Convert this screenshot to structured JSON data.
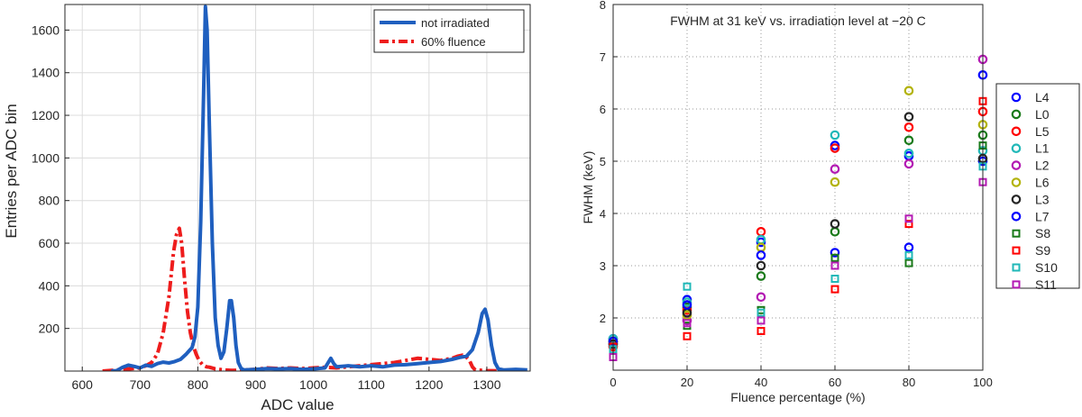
{
  "chart_data": [
    {
      "type": "line",
      "title": "",
      "xlabel": "ADC value",
      "ylabel": "Entries per ADC bin",
      "xlim": [
        570,
        1375
      ],
      "ylim": [
        0,
        1720
      ],
      "grid": true,
      "legend_position": "top-right",
      "xticks": [
        600,
        700,
        800,
        900,
        1000,
        1100,
        1200,
        1300
      ],
      "yticks": [
        200,
        400,
        600,
        800,
        1000,
        1200,
        1400,
        1600
      ],
      "series": [
        {
          "name": "not irradiated",
          "color": "#1f5fbf",
          "style": "solid",
          "points": [
            [
              650,
              0
            ],
            [
              660,
              2
            ],
            [
              670,
              18
            ],
            [
              680,
              28
            ],
            [
              690,
              22
            ],
            [
              700,
              15
            ],
            [
              710,
              28
            ],
            [
              720,
              22
            ],
            [
              730,
              35
            ],
            [
              740,
              42
            ],
            [
              750,
              38
            ],
            [
              760,
              45
            ],
            [
              770,
              55
            ],
            [
              780,
              80
            ],
            [
              785,
              95
            ],
            [
              790,
              110
            ],
            [
              795,
              160
            ],
            [
              800,
              300
            ],
            [
              805,
              700
            ],
            [
              810,
              1300
            ],
            [
              813,
              1710
            ],
            [
              816,
              1600
            ],
            [
              820,
              1150
            ],
            [
              825,
              600
            ],
            [
              830,
              250
            ],
            [
              835,
              120
            ],
            [
              840,
              60
            ],
            [
              845,
              90
            ],
            [
              850,
              200
            ],
            [
              855,
              330
            ],
            [
              858,
              330
            ],
            [
              862,
              250
            ],
            [
              866,
              120
            ],
            [
              870,
              40
            ],
            [
              875,
              12
            ],
            [
              880,
              5
            ],
            [
              900,
              8
            ],
            [
              920,
              12
            ],
            [
              940,
              10
            ],
            [
              960,
              12
            ],
            [
              980,
              8
            ],
            [
              1000,
              10
            ],
            [
              1020,
              15
            ],
            [
              1030,
              60
            ],
            [
              1035,
              35
            ],
            [
              1040,
              20
            ],
            [
              1060,
              25
            ],
            [
              1080,
              20
            ],
            [
              1100,
              25
            ],
            [
              1120,
              20
            ],
            [
              1140,
              28
            ],
            [
              1160,
              30
            ],
            [
              1180,
              35
            ],
            [
              1200,
              40
            ],
            [
              1220,
              45
            ],
            [
              1240,
              55
            ],
            [
              1255,
              65
            ],
            [
              1265,
              70
            ],
            [
              1275,
              100
            ],
            [
              1285,
              180
            ],
            [
              1292,
              270
            ],
            [
              1297,
              290
            ],
            [
              1302,
              240
            ],
            [
              1308,
              120
            ],
            [
              1314,
              40
            ],
            [
              1320,
              10
            ],
            [
              1330,
              5
            ],
            [
              1350,
              8
            ],
            [
              1370,
              5
            ]
          ]
        },
        {
          "name": "60% fluence",
          "color": "#ee1c1c",
          "style": "dashdot",
          "points": [
            [
              635,
              0
            ],
            [
              660,
              5
            ],
            [
              680,
              10
            ],
            [
              700,
              15
            ],
            [
              710,
              25
            ],
            [
              720,
              40
            ],
            [
              730,
              80
            ],
            [
              740,
              180
            ],
            [
              750,
              350
            ],
            [
              758,
              560
            ],
            [
              763,
              640
            ],
            [
              768,
              670
            ],
            [
              772,
              600
            ],
            [
              777,
              430
            ],
            [
              782,
              280
            ],
            [
              787,
              180
            ],
            [
              792,
              120
            ],
            [
              797,
              80
            ],
            [
              802,
              50
            ],
            [
              808,
              30
            ],
            [
              815,
              20
            ],
            [
              820,
              18
            ],
            [
              830,
              10
            ],
            [
              845,
              5
            ],
            [
              860,
              3
            ],
            [
              880,
              5
            ],
            [
              900,
              8
            ],
            [
              920,
              15
            ],
            [
              940,
              12
            ],
            [
              960,
              15
            ],
            [
              980,
              12
            ],
            [
              1000,
              15
            ],
            [
              1020,
              18
            ],
            [
              1040,
              15
            ],
            [
              1060,
              20
            ],
            [
              1080,
              25
            ],
            [
              1100,
              30
            ],
            [
              1120,
              35
            ],
            [
              1140,
              40
            ],
            [
              1160,
              50
            ],
            [
              1180,
              60
            ],
            [
              1200,
              55
            ],
            [
              1220,
              50
            ],
            [
              1240,
              60
            ],
            [
              1250,
              70
            ],
            [
              1258,
              75
            ],
            [
              1263,
              70
            ],
            [
              1270,
              50
            ],
            [
              1275,
              20
            ],
            [
              1280,
              5
            ],
            [
              1300,
              2
            ],
            [
              1330,
              0
            ]
          ]
        }
      ]
    },
    {
      "type": "scatter",
      "title": "FWHM at 31 keV vs. irradiation level at −20 C",
      "xlabel": "Fluence percentage (%)",
      "ylabel": "FWHM (keV)",
      "xlim": [
        0,
        100
      ],
      "ylim": [
        1,
        8
      ],
      "grid": true,
      "legend_position": "right-outside",
      "xticks": [
        0,
        20,
        40,
        60,
        80,
        100
      ],
      "yticks": [
        2,
        3,
        4,
        5,
        6,
        7,
        8
      ],
      "series": [
        {
          "name": "L4",
          "marker": "circle",
          "color": "#0000ff",
          "x": [
            0,
            20,
            40,
            60,
            80,
            100
          ],
          "y": [
            1.6,
            2.35,
            3.45,
            5.3,
            5.1,
            5.0
          ]
        },
        {
          "name": "L0",
          "marker": "circle",
          "color": "#1a7a1a",
          "x": [
            0,
            20,
            40,
            60,
            80,
            100
          ],
          "y": [
            1.55,
            2.2,
            2.8,
            3.65,
            5.4,
            5.5
          ]
        },
        {
          "name": "L5",
          "marker": "circle",
          "color": "#ff0000",
          "x": [
            0,
            20,
            40,
            60,
            80,
            100
          ],
          "y": [
            1.45,
            2.15,
            3.65,
            5.25,
            5.65,
            5.95
          ]
        },
        {
          "name": "L1",
          "marker": "circle",
          "color": "#21b8b8",
          "x": [
            0,
            20,
            40,
            60,
            80,
            100
          ],
          "y": [
            1.6,
            2.3,
            3.5,
            5.5,
            5.15,
            5.2
          ]
        },
        {
          "name": "L2",
          "marker": "circle",
          "color": "#b31ab3",
          "x": [
            0,
            20,
            40,
            60,
            80,
            100
          ],
          "y": [
            1.5,
            1.95,
            2.4,
            4.85,
            4.95,
            6.95
          ]
        },
        {
          "name": "L6",
          "marker": "circle",
          "color": "#b3b30d",
          "x": [
            0,
            20,
            40,
            60,
            80,
            100
          ],
          "y": [
            1.55,
            2.05,
            3.35,
            4.6,
            6.35,
            5.7
          ]
        },
        {
          "name": "L3",
          "marker": "circle",
          "color": "#262626",
          "x": [
            0,
            20,
            40,
            60,
            80,
            100
          ],
          "y": [
            1.5,
            2.1,
            3.0,
            3.8,
            5.85,
            5.05
          ]
        },
        {
          "name": "L7",
          "marker": "circle",
          "color": "#0000ff",
          "x": [
            0,
            20,
            40,
            60,
            80,
            100
          ],
          "y": [
            1.55,
            2.25,
            3.2,
            3.25,
            3.35,
            6.65
          ]
        },
        {
          "name": "S8",
          "marker": "square",
          "color": "#1a7a1a",
          "x": [
            0,
            20,
            40,
            60,
            80,
            100
          ],
          "y": [
            1.45,
            1.85,
            2.15,
            3.15,
            3.05,
            5.3
          ]
        },
        {
          "name": "S9",
          "marker": "square",
          "color": "#ff0000",
          "x": [
            0,
            20,
            40,
            60,
            80,
            100
          ],
          "y": [
            1.45,
            1.65,
            1.75,
            2.55,
            3.8,
            6.15
          ]
        },
        {
          "name": "S10",
          "marker": "square",
          "color": "#21b8b8",
          "x": [
            0,
            20,
            40,
            60,
            80,
            100
          ],
          "y": [
            1.4,
            2.6,
            2.1,
            2.75,
            3.2,
            4.9
          ]
        },
        {
          "name": "S11",
          "marker": "square",
          "color": "#b31ab3",
          "x": [
            0,
            20,
            40,
            60,
            80,
            100
          ],
          "y": [
            1.25,
            1.9,
            1.95,
            3.0,
            3.9,
            4.6
          ]
        }
      ]
    }
  ]
}
